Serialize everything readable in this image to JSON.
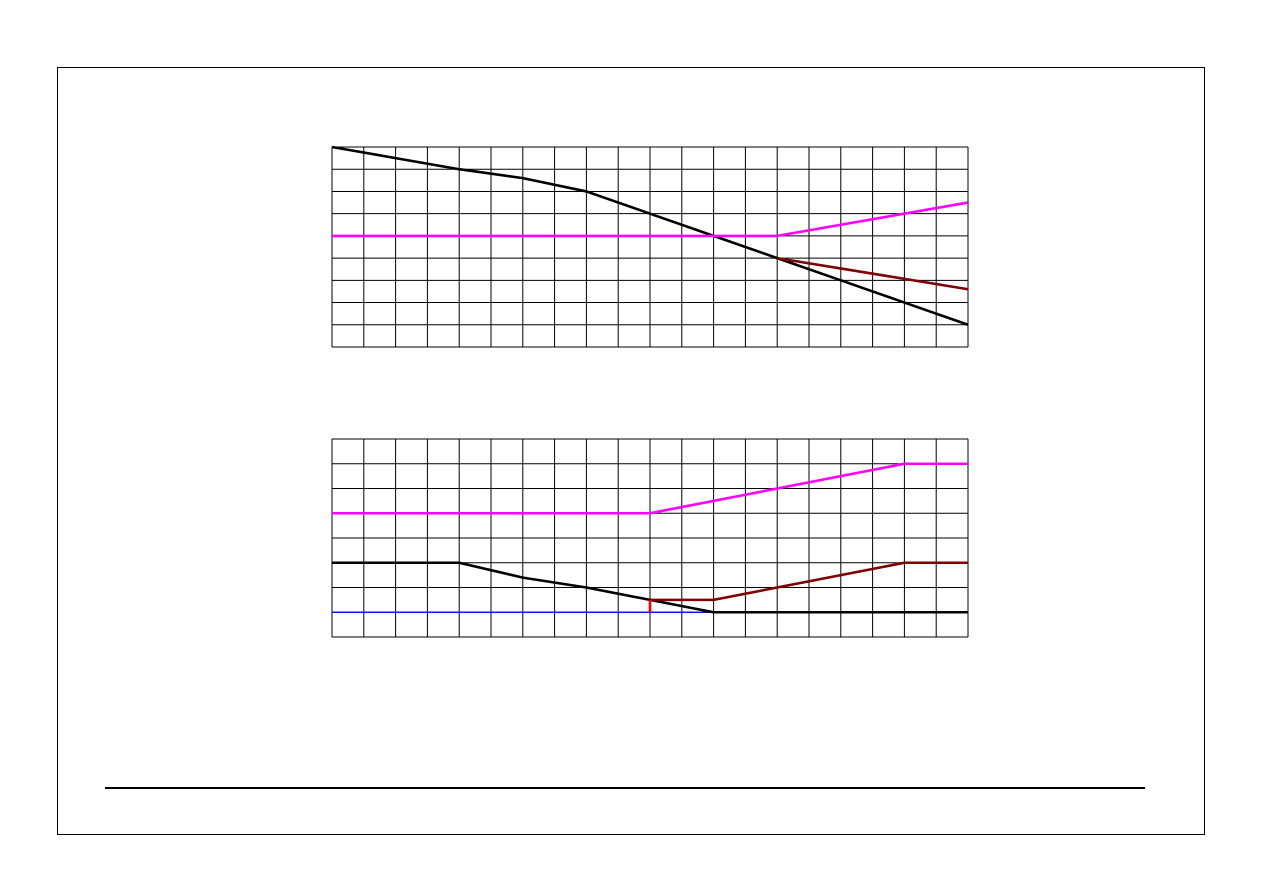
{
  "colors": {
    "black": "#000000",
    "magenta": "#ff00ff",
    "darkred": "#800000",
    "red": "#ff0000",
    "blue": "#0000ff",
    "grid": "#000000"
  },
  "chart_data": [
    {
      "type": "line",
      "grid": true,
      "xlim": [
        0,
        20
      ],
      "ylim": [
        0,
        9
      ],
      "series": [
        {
          "color": "#000000",
          "x": [
            0,
            2,
            4,
            6,
            8,
            10,
            12,
            14,
            16,
            18,
            20
          ],
          "y": [
            9,
            8.5,
            8,
            7.6,
            7,
            6,
            5,
            4,
            3,
            2,
            1
          ]
        },
        {
          "color": "#ff00ff",
          "x": [
            0,
            14,
            20
          ],
          "y": [
            5,
            5,
            6.5
          ]
        },
        {
          "color": "#800000",
          "x": [
            14,
            20
          ],
          "y": [
            4,
            2.6
          ]
        }
      ]
    },
    {
      "type": "line",
      "grid": true,
      "xlim": [
        0,
        20
      ],
      "ylim": [
        0,
        8
      ],
      "series": [
        {
          "color": "#0000ff",
          "x": [
            0,
            12
          ],
          "y": [
            1,
            1
          ],
          "width": 1.2
        },
        {
          "color": "#ff00ff",
          "x": [
            0,
            10,
            18,
            20
          ],
          "y": [
            5,
            5,
            7,
            7
          ]
        },
        {
          "color": "#000000",
          "x": [
            0,
            4,
            6,
            8,
            10,
            12,
            20
          ],
          "y": [
            3,
            3,
            2.4,
            2,
            1.5,
            1,
            1
          ]
        },
        {
          "color": "#800000",
          "x": [
            10,
            12,
            18,
            20
          ],
          "y": [
            1.5,
            1.5,
            3,
            3
          ]
        },
        {
          "color": "#ff0000",
          "x": [
            10,
            10
          ],
          "y": [
            1,
            1.5
          ]
        }
      ]
    }
  ]
}
